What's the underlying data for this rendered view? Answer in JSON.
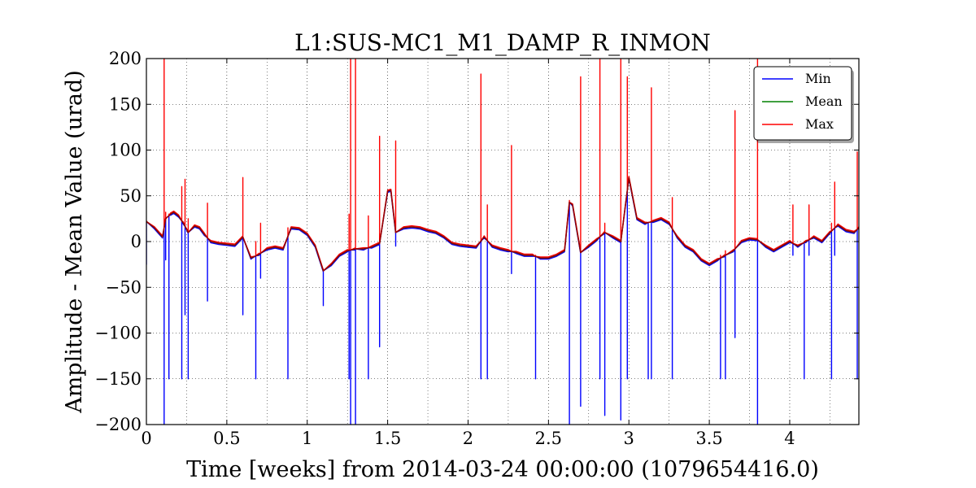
{
  "chart_data": {
    "type": "line",
    "title": "L1:SUS-MC1_M1_DAMP_R_INMON",
    "xlabel": "Time [weeks] from 2014-03-24 00:00:00 (1079654416.0)",
    "ylabel": "Amplitude - Mean Value (urad)",
    "xlim": [
      0,
      4.43
    ],
    "ylim": [
      -200,
      200
    ],
    "xticks": [
      0,
      0.5,
      1,
      1.5,
      2,
      2.5,
      3,
      3.5,
      4
    ],
    "xtick_labels": [
      "0",
      "0.5",
      "1",
      "1.5",
      "2",
      "2.5",
      "3",
      "3.5",
      "4"
    ],
    "yticks": [
      -200,
      -150,
      -100,
      -50,
      0,
      50,
      100,
      150,
      200
    ],
    "ytick_labels": [
      "−200",
      "−150",
      "−100",
      "−50",
      "0",
      "50",
      "100",
      "150",
      "200"
    ],
    "grid": true,
    "legend": {
      "placement": "top-right"
    },
    "baseline": {
      "x": [
        0,
        0.05,
        0.1,
        0.12,
        0.15,
        0.17,
        0.2,
        0.23,
        0.26,
        0.3,
        0.33,
        0.36,
        0.4,
        0.45,
        0.5,
        0.55,
        0.6,
        0.65,
        0.7,
        0.75,
        0.8,
        0.85,
        0.9,
        0.95,
        1.0,
        1.05,
        1.1,
        1.15,
        1.2,
        1.25,
        1.3,
        1.35,
        1.4,
        1.45,
        1.5,
        1.52,
        1.55,
        1.6,
        1.65,
        1.7,
        1.75,
        1.8,
        1.85,
        1.9,
        1.95,
        2.0,
        2.05,
        2.1,
        2.15,
        2.2,
        2.25,
        2.3,
        2.35,
        2.4,
        2.45,
        2.5,
        2.55,
        2.6,
        2.63,
        2.65,
        2.7,
        2.75,
        2.8,
        2.85,
        2.9,
        2.95,
        3.0,
        3.05,
        3.1,
        3.15,
        3.2,
        3.25,
        3.3,
        3.35,
        3.4,
        3.45,
        3.5,
        3.55,
        3.6,
        3.65,
        3.7,
        3.75,
        3.8,
        3.85,
        3.9,
        3.95,
        4.0,
        4.05,
        4.1,
        4.15,
        4.2,
        4.25,
        4.3,
        4.35,
        4.4,
        4.43
      ],
      "y": [
        22,
        15,
        5,
        25,
        30,
        32,
        28,
        20,
        10,
        17,
        15,
        8,
        0,
        -2,
        -3,
        -4,
        5,
        -18,
        -14,
        -8,
        -6,
        -8,
        15,
        14,
        8,
        -5,
        -32,
        -25,
        -15,
        -10,
        -8,
        -8,
        -6,
        -2,
        55,
        56,
        10,
        15,
        16,
        15,
        12,
        10,
        5,
        -2,
        -4,
        -5,
        -6,
        5,
        -5,
        -8,
        -10,
        -12,
        -15,
        -15,
        -18,
        -18,
        -15,
        -10,
        43,
        40,
        -12,
        -5,
        2,
        10,
        5,
        0,
        70,
        25,
        20,
        22,
        25,
        20,
        5,
        -5,
        -10,
        -20,
        -25,
        -20,
        -15,
        -10,
        0,
        3,
        2,
        -5,
        -10,
        -5,
        0,
        -5,
        0,
        5,
        0,
        10,
        18,
        12,
        10,
        15
      ]
    },
    "spikes": [
      {
        "x": 0.0,
        "max": 22,
        "min": -25
      },
      {
        "x": 0.11,
        "max": 200,
        "min": -200
      },
      {
        "x": 0.12,
        "max": 32,
        "min": -20
      },
      {
        "x": 0.14,
        "max": 30,
        "min": -150
      },
      {
        "x": 0.22,
        "max": 60,
        "min": -150
      },
      {
        "x": 0.24,
        "max": 68,
        "min": -80
      },
      {
        "x": 0.26,
        "max": 25,
        "min": -150
      },
      {
        "x": 0.38,
        "max": 42,
        "min": -65
      },
      {
        "x": 0.6,
        "max": 70,
        "min": -80
      },
      {
        "x": 0.68,
        "max": 0,
        "min": -150
      },
      {
        "x": 0.71,
        "max": 20,
        "min": -40
      },
      {
        "x": 0.88,
        "max": 15,
        "min": -150
      },
      {
        "x": 1.1,
        "max": -30,
        "min": -70
      },
      {
        "x": 1.26,
        "max": 30,
        "min": -150
      },
      {
        "x": 1.27,
        "max": 200,
        "min": -200
      },
      {
        "x": 1.3,
        "max": 200,
        "min": -200
      },
      {
        "x": 1.38,
        "max": 28,
        "min": -150
      },
      {
        "x": 1.45,
        "max": 115,
        "min": -115
      },
      {
        "x": 1.55,
        "max": 110,
        "min": -5
      },
      {
        "x": 2.08,
        "max": 183,
        "min": -150
      },
      {
        "x": 2.12,
        "max": 40,
        "min": -150
      },
      {
        "x": 2.27,
        "max": 105,
        "min": -35
      },
      {
        "x": 2.42,
        "max": -15,
        "min": -150
      },
      {
        "x": 2.63,
        "max": 45,
        "min": -200
      },
      {
        "x": 2.7,
        "max": 180,
        "min": -180
      },
      {
        "x": 2.82,
        "max": 200,
        "min": -150
      },
      {
        "x": 2.85,
        "max": 20,
        "min": -190
      },
      {
        "x": 2.95,
        "max": 200,
        "min": -195
      },
      {
        "x": 2.99,
        "max": 180,
        "min": -150
      },
      {
        "x": 3.12,
        "max": 0,
        "min": -150
      },
      {
        "x": 3.14,
        "max": 168,
        "min": -150
      },
      {
        "x": 3.27,
        "max": 48,
        "min": -150
      },
      {
        "x": 3.57,
        "max": -15,
        "min": -150
      },
      {
        "x": 3.6,
        "max": -10,
        "min": -150
      },
      {
        "x": 3.66,
        "max": 143,
        "min": -105
      },
      {
        "x": 3.8,
        "max": 200,
        "min": -200
      },
      {
        "x": 4.02,
        "max": 40,
        "min": -15
      },
      {
        "x": 4.09,
        "max": 0,
        "min": -150
      },
      {
        "x": 4.12,
        "max": 40,
        "min": -15
      },
      {
        "x": 4.26,
        "max": 20,
        "min": -150
      },
      {
        "x": 4.28,
        "max": 65,
        "min": -15
      },
      {
        "x": 4.42,
        "max": 98,
        "min": -150
      }
    ],
    "series": [
      {
        "name": "Min",
        "color": "#0000ff"
      },
      {
        "name": "Mean",
        "color": "#008000"
      },
      {
        "name": "Max",
        "color": "#ff0000"
      }
    ]
  }
}
